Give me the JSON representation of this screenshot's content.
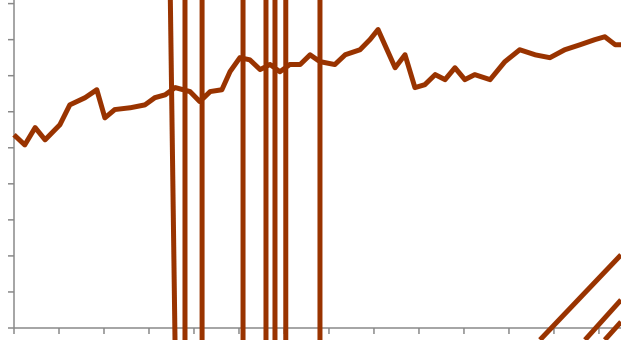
{
  "chart_data": {
    "type": "line",
    "xlim": [
      0,
      13.49
    ],
    "xticks": [
      0,
      1,
      2,
      3,
      4,
      5,
      6,
      7,
      8,
      9,
      10,
      11,
      12,
      13
    ],
    "ylim": [
      0,
      9.1
    ],
    "yticks": [
      0,
      1,
      2,
      3,
      4,
      5,
      6,
      7,
      8,
      9
    ],
    "grid": false,
    "series": [
      {
        "color": "#993300",
        "x": [
          0,
          0.24,
          0.47,
          0.69,
          1.02,
          1.24,
          1.58,
          1.84,
          2.02,
          2.24,
          2.58,
          2.91,
          3.13,
          3.36,
          3.58,
          3.91,
          4.13,
          4.36,
          4.62,
          4.8,
          5.02,
          5.24,
          5.47,
          5.69,
          5.91,
          6.13,
          6.36,
          6.58,
          6.8,
          7.13,
          7.36,
          7.69,
          7.91,
          8.09,
          8.24,
          8.47,
          8.69,
          8.91,
          9.13,
          9.36,
          9.58,
          9.8,
          10.02,
          10.24,
          10.58,
          10.91,
          11.24,
          11.58,
          11.91,
          12.24,
          12.58,
          12.91,
          13.13,
          13.36,
          13.49
        ],
        "values": [
          5.36,
          5.08,
          5.56,
          5.22,
          5.64,
          6.19,
          6.39,
          6.61,
          5.83,
          6.06,
          6.11,
          6.19,
          6.39,
          6.47,
          6.67,
          6.56,
          6.28,
          6.56,
          6.61,
          7.11,
          7.5,
          7.44,
          7.17,
          7.31,
          7.11,
          7.31,
          7.31,
          7.58,
          7.39,
          7.31,
          7.58,
          7.72,
          8.0,
          8.28,
          7.86,
          7.22,
          7.58,
          6.67,
          6.75,
          7.03,
          6.89,
          7.22,
          6.89,
          7.03,
          6.89,
          7.39,
          7.72,
          7.58,
          7.5,
          7.72,
          7.86,
          8.0,
          8.08,
          7.86,
          7.86
        ]
      },
      {
        "color": "#993300",
        "x": [
          3.47,
          3.58
        ],
        "values": [
          9.5,
          -0.5
        ]
      },
      {
        "color": "#993300",
        "x": [
          3.8,
          3.8
        ],
        "values": [
          9.5,
          -0.5
        ]
      },
      {
        "color": "#993300",
        "x": [
          4.18,
          4.18
        ],
        "values": [
          9.5,
          -0.5
        ]
      },
      {
        "color": "#993300",
        "x": [
          5.09,
          5.09
        ],
        "values": [
          9.5,
          -0.5
        ]
      },
      {
        "color": "#993300",
        "x": [
          5.6,
          5.6
        ],
        "values": [
          9.5,
          -0.5
        ]
      },
      {
        "color": "#993300",
        "x": [
          5.8,
          5.8
        ],
        "values": [
          9.5,
          -0.5
        ]
      },
      {
        "color": "#993300",
        "x": [
          6.04,
          6.04
        ],
        "values": [
          9.5,
          -0.5
        ]
      },
      {
        "color": "#993300",
        "x": [
          6.8,
          6.8
        ],
        "values": [
          9.5,
          -0.5
        ]
      },
      {
        "color": "#993300",
        "x": [
          11.69,
          13.49
        ],
        "values": [
          -0.33,
          2.03
        ]
      },
      {
        "color": "#993300",
        "x": [
          12.69,
          13.49
        ],
        "values": [
          -0.33,
          0.78
        ]
      },
      {
        "color": "#993300",
        "x": [
          13.13,
          13.49
        ],
        "values": [
          -0.33,
          0.17
        ]
      }
    ]
  }
}
